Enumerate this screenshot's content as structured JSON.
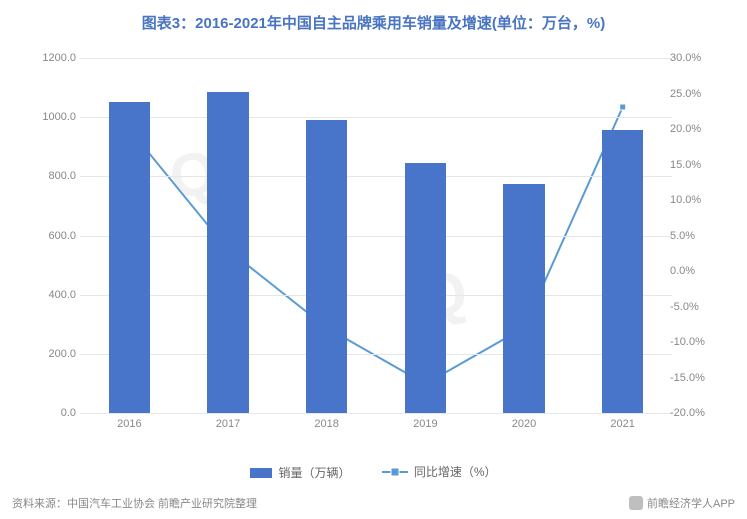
{
  "title": "图表3：2016-2021年中国自主品牌乘用车销量及增速(单位：万台，%)",
  "chart": {
    "type": "bar+line",
    "categories": [
      "2016",
      "2017",
      "2018",
      "2019",
      "2020",
      "2021"
    ],
    "bars": {
      "label": "销量（万辆）",
      "values": [
        1050,
        1085,
        990,
        845,
        775,
        955
      ],
      "color": "#4874c9",
      "bar_width_frac": 0.42
    },
    "line": {
      "label": "同比增速（%）",
      "values": [
        20.0,
        3.0,
        -8.0,
        -15.9,
        -8.0,
        23.1
      ],
      "color": "#5b9bd5",
      "marker": "square",
      "marker_size": 6
    },
    "y_left": {
      "min": 0,
      "max": 1200,
      "step": 200,
      "decimals": 1
    },
    "y_right": {
      "min": -20,
      "max": 30,
      "step": 5,
      "decimals": 1,
      "suffix": "%"
    },
    "grid_color": "#e6e6e6",
    "background_color": "#ffffff",
    "title_color": "#4874c2",
    "title_fontsize": 15,
    "tick_fontsize": 11,
    "tick_color": "#888888"
  },
  "legend": {
    "items": [
      "销量（万辆）",
      "同比增速（%）"
    ]
  },
  "source": "资料来源：中国汽车工业协会 前瞻产业研究院整理",
  "footer_right": "前瞻经济学人APP",
  "watermarks": [
    "Q",
    "Q"
  ]
}
